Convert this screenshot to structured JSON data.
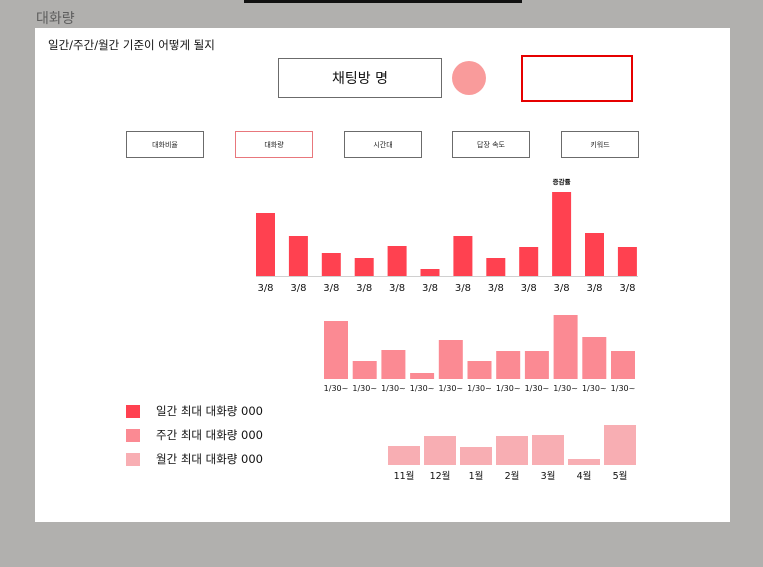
{
  "frame": {
    "title": "대화량"
  },
  "note": "일간/주간/월간 기준이 어떻게 될지",
  "room": {
    "title": "채팅방 명"
  },
  "tabs": [
    {
      "label": "대화비율",
      "active": false
    },
    {
      "label": "대화량",
      "active": true
    },
    {
      "label": "시간대",
      "active": false
    },
    {
      "label": "답장 속도",
      "active": false
    },
    {
      "label": "키워드",
      "active": false
    }
  ],
  "colors": {
    "daily": "#ff4150",
    "weekly": "#fb8a93",
    "monthly": "#f8aeb3",
    "highlight_box": "#e60000"
  },
  "legend": [
    {
      "label": "일간 최대 대화량 000",
      "color": "#ff4150"
    },
    {
      "label": "주간 최대 대화량 000",
      "color": "#fb8a93"
    },
    {
      "label": "월간 최대 대화량 000",
      "color": "#f8aeb3"
    }
  ],
  "chart_data": [
    {
      "type": "bar",
      "categories": [
        "3/8",
        "3/8",
        "3/8",
        "3/8",
        "3/8",
        "3/8",
        "3/8",
        "3/8",
        "3/8",
        "3/8",
        "3/8",
        "3/8"
      ],
      "values": [
        63,
        40,
        23,
        18,
        30,
        7,
        40,
        18,
        29,
        84,
        43,
        29
      ],
      "ylim": [
        0,
        90
      ],
      "annotation": {
        "index": 9,
        "text": "증감률"
      }
    },
    {
      "type": "bar",
      "categories": [
        "1/30~",
        "1/30~",
        "1/30~",
        "1/30~",
        "1/30~",
        "1/30~",
        "1/30~",
        "1/30~",
        "1/30~",
        "1/30~",
        "1/30~"
      ],
      "values": [
        58,
        18,
        29,
        6,
        39,
        18,
        28,
        28,
        64,
        42,
        28
      ],
      "ylim": [
        0,
        70
      ]
    },
    {
      "type": "bar",
      "categories": [
        "11월",
        "12월",
        "1월",
        "2월",
        "3월",
        "4월",
        "5월"
      ],
      "values": [
        19,
        29,
        18,
        29,
        30,
        6,
        40
      ],
      "ylim": [
        0,
        45
      ]
    }
  ]
}
